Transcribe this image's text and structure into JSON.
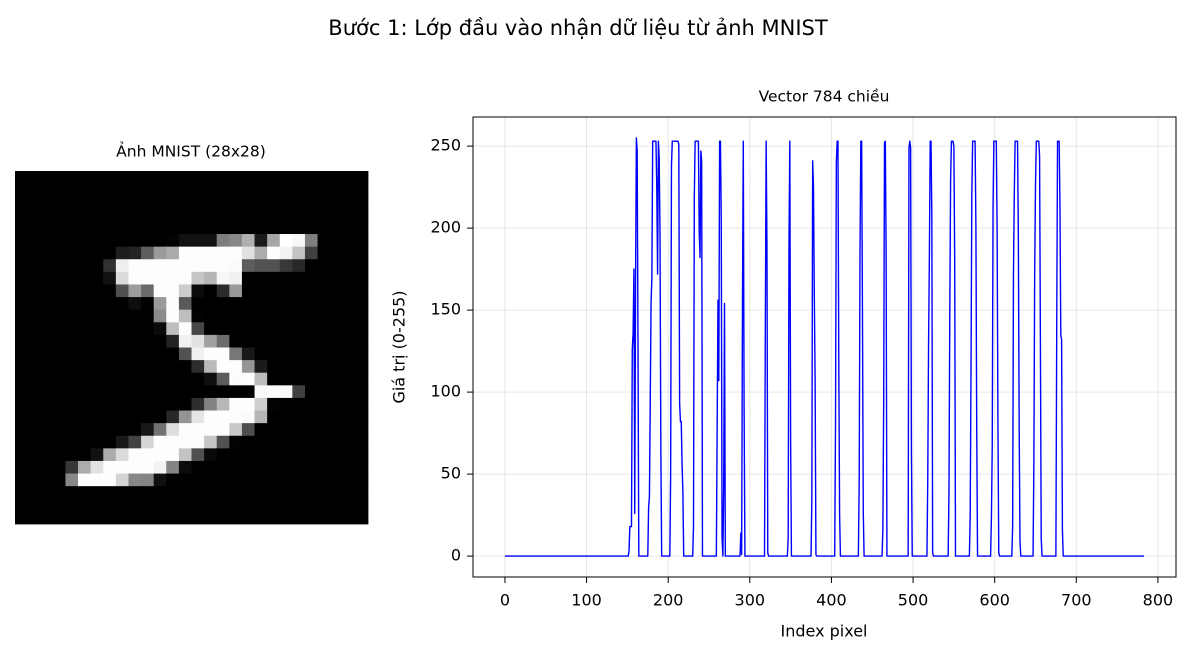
{
  "title": "Bước 1: Lớp đầu vào nhận dữ liệu từ ảnh MNIST",
  "chart_data": [
    {
      "type": "image",
      "title": "Ảnh MNIST (28x28)",
      "cmap": "gray",
      "source": "chart_data.1.values"
    },
    {
      "type": "line",
      "title": "Vector 784 chiều",
      "xlabel": "Index pixel",
      "ylabel": "Giá trị (0-255)",
      "color": "#0000ff",
      "grid": true,
      "xlim": [
        -39.15,
        822.15
      ],
      "xticks": [
        0,
        100,
        200,
        300,
        400,
        500,
        600,
        700,
        800
      ],
      "ylim": [
        -12.75,
        267.75
      ],
      "yticks": [
        0,
        50,
        100,
        150,
        200,
        250
      ],
      "values": [
        0,
        0,
        0,
        0,
        0,
        0,
        0,
        0,
        0,
        0,
        0,
        0,
        0,
        0,
        0,
        0,
        0,
        0,
        0,
        0,
        0,
        0,
        0,
        0,
        0,
        0,
        0,
        0,
        0,
        0,
        0,
        0,
        0,
        0,
        0,
        0,
        0,
        0,
        0,
        0,
        0,
        0,
        0,
        0,
        0,
        0,
        0,
        0,
        0,
        0,
        0,
        0,
        0,
        0,
        0,
        0,
        0,
        0,
        0,
        0,
        0,
        0,
        0,
        0,
        0,
        0,
        0,
        0,
        0,
        0,
        0,
        0,
        0,
        0,
        0,
        0,
        0,
        0,
        0,
        0,
        0,
        0,
        0,
        0,
        0,
        0,
        0,
        0,
        0,
        0,
        0,
        0,
        0,
        0,
        0,
        0,
        0,
        0,
        0,
        0,
        0,
        0,
        0,
        0,
        0,
        0,
        0,
        0,
        0,
        0,
        0,
        0,
        0,
        0,
        0,
        0,
        0,
        0,
        0,
        0,
        0,
        0,
        0,
        0,
        0,
        0,
        0,
        0,
        0,
        0,
        0,
        0,
        0,
        0,
        0,
        0,
        0,
        0,
        0,
        0,
        0,
        0,
        0,
        0,
        0,
        0,
        0,
        0,
        0,
        0,
        0,
        0,
        3,
        18,
        18,
        18,
        126,
        136,
        175,
        26,
        166,
        255,
        247,
        127,
        0,
        0,
        0,
        0,
        0,
        0,
        0,
        0,
        0,
        0,
        0,
        0,
        30,
        36,
        94,
        154,
        170,
        253,
        253,
        253,
        253,
        253,
        225,
        172,
        253,
        242,
        195,
        64,
        0,
        0,
        0,
        0,
        0,
        0,
        0,
        0,
        0,
        0,
        0,
        49,
        238,
        253,
        253,
        253,
        253,
        253,
        253,
        253,
        253,
        251,
        93,
        82,
        82,
        56,
        39,
        0,
        0,
        0,
        0,
        0,
        0,
        0,
        0,
        0,
        0,
        0,
        0,
        18,
        219,
        253,
        253,
        253,
        253,
        253,
        198,
        182,
        247,
        241,
        0,
        0,
        0,
        0,
        0,
        0,
        0,
        0,
        0,
        0,
        0,
        0,
        0,
        0,
        0,
        0,
        0,
        0,
        80,
        156,
        107,
        253,
        253,
        205,
        11,
        0,
        43,
        154,
        0,
        0,
        0,
        0,
        0,
        0,
        0,
        0,
        0,
        0,
        0,
        0,
        0,
        0,
        0,
        0,
        0,
        0,
        0,
        14,
        1,
        154,
        253,
        90,
        0,
        0,
        0,
        0,
        0,
        0,
        0,
        0,
        0,
        0,
        0,
        0,
        0,
        0,
        0,
        0,
        0,
        0,
        0,
        0,
        0,
        0,
        0,
        0,
        0,
        139,
        253,
        190,
        2,
        0,
        0,
        0,
        0,
        0,
        0,
        0,
        0,
        0,
        0,
        0,
        0,
        0,
        0,
        0,
        0,
        0,
        0,
        0,
        0,
        0,
        0,
        0,
        0,
        11,
        190,
        253,
        70,
        0,
        0,
        0,
        0,
        0,
        0,
        0,
        0,
        0,
        0,
        0,
        0,
        0,
        0,
        0,
        0,
        0,
        0,
        0,
        0,
        0,
        0,
        0,
        0,
        0,
        35,
        241,
        225,
        160,
        108,
        1,
        0,
        0,
        0,
        0,
        0,
        0,
        0,
        0,
        0,
        0,
        0,
        0,
        0,
        0,
        0,
        0,
        0,
        0,
        0,
        0,
        0,
        0,
        0,
        81,
        240,
        253,
        253,
        119,
        25,
        0,
        0,
        0,
        0,
        0,
        0,
        0,
        0,
        0,
        0,
        0,
        0,
        0,
        0,
        0,
        0,
        0,
        0,
        0,
        0,
        0,
        0,
        0,
        45,
        186,
        253,
        253,
        150,
        27,
        0,
        0,
        0,
        0,
        0,
        0,
        0,
        0,
        0,
        0,
        0,
        0,
        0,
        0,
        0,
        0,
        0,
        0,
        0,
        0,
        0,
        0,
        0,
        16,
        93,
        252,
        253,
        187,
        0,
        0,
        0,
        0,
        0,
        0,
        0,
        0,
        0,
        0,
        0,
        0,
        0,
        0,
        0,
        0,
        0,
        0,
        0,
        0,
        0,
        0,
        0,
        0,
        0,
        0,
        0,
        249,
        253,
        249,
        64,
        0,
        0,
        0,
        0,
        0,
        0,
        0,
        0,
        0,
        0,
        0,
        0,
        0,
        0,
        0,
        0,
        0,
        0,
        0,
        46,
        130,
        183,
        253,
        253,
        207,
        2,
        0,
        0,
        0,
        0,
        0,
        0,
        0,
        0,
        0,
        0,
        0,
        0,
        0,
        0,
        0,
        0,
        0,
        0,
        0,
        39,
        148,
        229,
        253,
        253,
        253,
        250,
        182,
        0,
        0,
        0,
        0,
        0,
        0,
        0,
        0,
        0,
        0,
        0,
        0,
        0,
        0,
        0,
        0,
        0,
        0,
        24,
        114,
        221,
        253,
        253,
        253,
        253,
        201,
        78,
        0,
        0,
        0,
        0,
        0,
        0,
        0,
        0,
        0,
        0,
        0,
        0,
        0,
        0,
        0,
        0,
        0,
        23,
        66,
        213,
        253,
        253,
        253,
        253,
        198,
        81,
        2,
        0,
        0,
        0,
        0,
        0,
        0,
        0,
        0,
        0,
        0,
        0,
        0,
        0,
        0,
        0,
        0,
        18,
        171,
        219,
        253,
        253,
        253,
        253,
        195,
        80,
        9,
        0,
        0,
        0,
        0,
        0,
        0,
        0,
        0,
        0,
        0,
        0,
        0,
        0,
        0,
        0,
        0,
        55,
        172,
        226,
        253,
        253,
        253,
        253,
        244,
        133,
        11,
        0,
        0,
        0,
        0,
        0,
        0,
        0,
        0,
        0,
        0,
        0,
        0,
        0,
        0,
        0,
        0,
        0,
        0,
        136,
        253,
        253,
        253,
        212,
        135,
        132,
        16,
        0,
        0,
        0,
        0,
        0,
        0,
        0,
        0,
        0,
        0,
        0,
        0,
        0,
        0,
        0,
        0,
        0,
        0,
        0,
        0,
        0,
        0,
        0,
        0,
        0,
        0,
        0,
        0,
        0,
        0,
        0,
        0,
        0,
        0,
        0,
        0,
        0,
        0,
        0,
        0,
        0,
        0,
        0,
        0,
        0,
        0,
        0,
        0,
        0,
        0,
        0,
        0,
        0,
        0,
        0,
        0,
        0,
        0,
        0,
        0,
        0,
        0,
        0,
        0,
        0,
        0,
        0,
        0,
        0,
        0,
        0,
        0,
        0,
        0,
        0,
        0,
        0,
        0,
        0,
        0,
        0,
        0,
        0,
        0,
        0,
        0,
        0,
        0,
        0,
        0,
        0,
        0,
        0,
        0,
        0,
        0,
        0,
        0,
        0,
        0
      ]
    }
  ]
}
